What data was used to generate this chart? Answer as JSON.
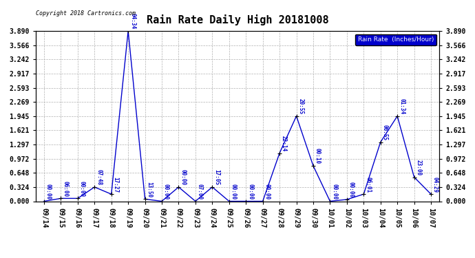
{
  "title": "Rain Rate Daily High 20181008",
  "copyright": "Copyright 2018 Cartronics.com",
  "yticks": [
    0.0,
    0.324,
    0.648,
    0.972,
    1.297,
    1.621,
    1.945,
    2.269,
    2.593,
    2.917,
    3.242,
    3.566,
    3.89
  ],
  "ylim": [
    0.0,
    3.89
  ],
  "line_color": "#0000cc",
  "bg_color": "#ffffff",
  "grid_color": "#b0b0b0",
  "dates": [
    "09/14",
    "09/15",
    "09/16",
    "09/17",
    "09/18",
    "09/19",
    "09/20",
    "09/21",
    "09/22",
    "09/23",
    "09/24",
    "09/25",
    "09/26",
    "09/27",
    "09/28",
    "09/29",
    "09/30",
    "10/01",
    "10/02",
    "10/03",
    "10/04",
    "10/05",
    "10/06",
    "10/07"
  ],
  "values": [
    0.0,
    0.065,
    0.065,
    0.324,
    0.162,
    3.89,
    0.05,
    0.0,
    0.324,
    0.0,
    0.324,
    0.0,
    0.0,
    0.0,
    1.1,
    1.945,
    0.81,
    0.0,
    0.04,
    0.162,
    1.35,
    1.945,
    0.55,
    0.162
  ],
  "annotations": [
    {
      "idx": 0,
      "label": "00:00"
    },
    {
      "idx": 1,
      "label": "06:00"
    },
    {
      "idx": 2,
      "label": "00:00"
    },
    {
      "idx": 3,
      "label": "07:48"
    },
    {
      "idx": 4,
      "label": "17:27"
    },
    {
      "idx": 5,
      "label": "04:34"
    },
    {
      "idx": 6,
      "label": "13:50"
    },
    {
      "idx": 7,
      "label": "00:00"
    },
    {
      "idx": 8,
      "label": "00:00"
    },
    {
      "idx": 9,
      "label": "07:00"
    },
    {
      "idx": 10,
      "label": "17:05"
    },
    {
      "idx": 11,
      "label": "00:00"
    },
    {
      "idx": 12,
      "label": "00:00"
    },
    {
      "idx": 13,
      "label": "00:00"
    },
    {
      "idx": 14,
      "label": "22:14"
    },
    {
      "idx": 15,
      "label": "20:55"
    },
    {
      "idx": 16,
      "label": "00:10"
    },
    {
      "idx": 17,
      "label": "00:00"
    },
    {
      "idx": 18,
      "label": "00:00"
    },
    {
      "idx": 19,
      "label": "06:01"
    },
    {
      "idx": 20,
      "label": "06:55"
    },
    {
      "idx": 21,
      "label": "01:34"
    },
    {
      "idx": 22,
      "label": "23:00"
    },
    {
      "idx": 23,
      "label": "04:29"
    }
  ],
  "legend_text": "Rain Rate  (Inches/Hour)",
  "legend_bg": "#0000cc",
  "legend_fg": "#ffffff",
  "title_fontsize": 11,
  "tick_fontsize": 7,
  "annot_fontsize": 5.5
}
